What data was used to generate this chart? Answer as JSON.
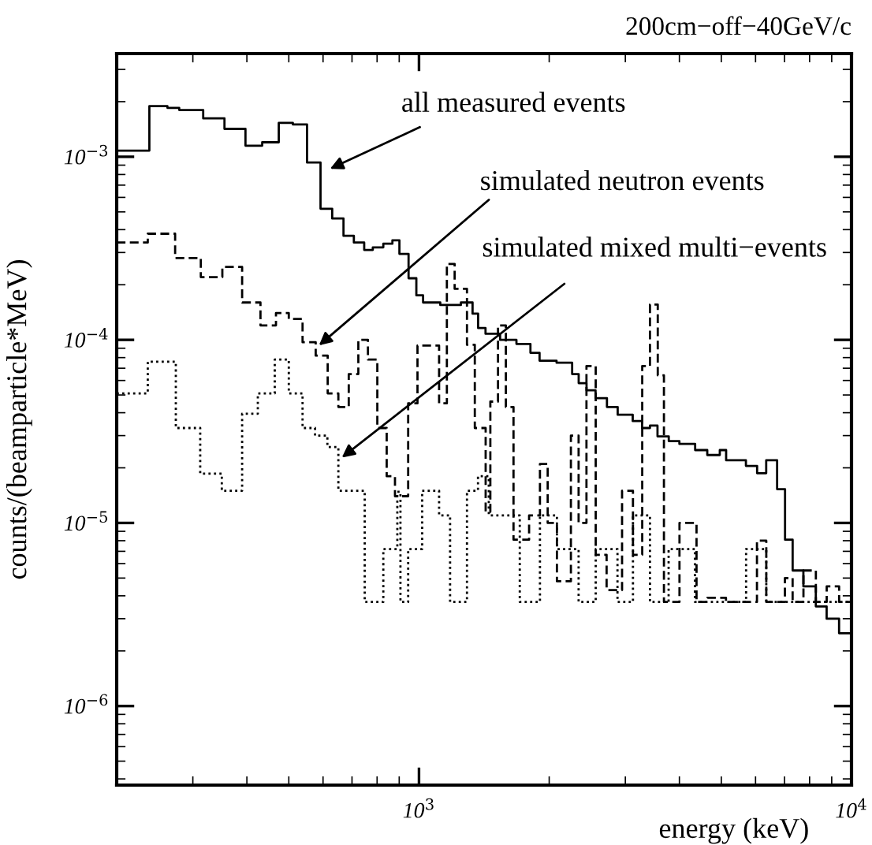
{
  "chart_data": {
    "type": "step",
    "title": "200cm−off−40GeV/c",
    "xlabel": "energy (keV)",
    "ylabel": "counts/(beamparticle*MeV)",
    "log": "xy",
    "xlim": [
      200,
      10000
    ],
    "ylim": [
      3.7e-07,
      0.00366
    ],
    "xticks": [
      {
        "value": 1000,
        "label": "10$^{3}$"
      },
      {
        "value": 10000,
        "label": "10$^{4}$"
      }
    ],
    "yticks": [
      {
        "value": 1e-06,
        "label": "10$^{−6}$"
      },
      {
        "value": 1e-05,
        "label": "10$^{−5}$"
      },
      {
        "value": 0.0001,
        "label": "10$^{−4}$"
      },
      {
        "value": 0.001,
        "label": "10$^{−3}$"
      }
    ],
    "grid": false,
    "legend": false,
    "annotations": [
      {
        "text": "all measured events",
        "x": 610,
        "y": 0.00084
      },
      {
        "text": "simulated neutron events",
        "x": 577,
        "y": 9e-05
      },
      {
        "text": "simulated mixed multi−events",
        "x": 651,
        "y": 2.2e-05
      }
    ],
    "series": [
      {
        "color": "#000000",
        "line_style": "solid",
        "x": [
          200,
          238,
          262,
          279,
          317,
          355,
          397,
          434,
          474,
          511,
          551,
          592,
          630,
          669,
          707,
          747,
          782,
          827,
          868,
          901,
          946,
          986,
          1022,
          1120,
          1250,
          1330,
          1370,
          1425,
          1540,
          1680,
          1810,
          1900,
          2080,
          2260,
          2340,
          2440,
          2560,
          2720,
          2880,
          3120,
          3280,
          3420,
          3560,
          3780,
          4000,
          4350,
          4640,
          4960,
          5130,
          5700,
          6050,
          6350,
          6730,
          7020,
          7310,
          7740,
          8270,
          8760,
          9360,
          10000
        ],
        "values": [
          0.00108,
          0.00189,
          0.00185,
          0.0018,
          0.00162,
          0.00142,
          0.00115,
          0.0012,
          0.00153,
          0.0015,
          0.00093,
          0.00052,
          0.00046,
          0.00037,
          0.00034,
          0.00031,
          0.00032,
          0.000335,
          0.00035,
          0.000295,
          0.000217,
          0.000175,
          0.00016,
          0.000155,
          0.00016,
          0.000139,
          0.000116,
          0.000108,
          0.0001,
          9.5e-05,
          8.5e-05,
          7.7e-05,
          7.5e-05,
          6.5e-05,
          5.8e-05,
          5.3e-05,
          4.8e-05,
          4.3e-05,
          3.9e-05,
          3.6e-05,
          3.3e-05,
          3.4e-05,
          2.97e-05,
          2.8e-05,
          2.7e-05,
          2.5e-05,
          2.35e-05,
          2.5e-05,
          2.2e-05,
          2.05e-05,
          1.87e-05,
          2.2e-05,
          1.53e-05,
          8.1e-06,
          5.5e-06,
          4.5e-06,
          3.5e-06,
          3e-06,
          2.5e-06,
          2.5e-06
        ]
      },
      {
        "color": "#000000",
        "line_style": "dashed",
        "x": [
          200,
          236,
          273,
          313,
          351,
          390,
          430,
          467,
          500,
          538,
          577,
          615,
          651,
          688,
          724,
          762,
          801,
          842,
          880,
          944,
          992,
          1113,
          1160,
          1209,
          1291,
          1346,
          1426,
          1462,
          1523,
          1588,
          1654,
          1797,
          1904,
          1984,
          2084,
          2245,
          2339,
          2439,
          2562,
          2715,
          2948,
          3124,
          3282,
          3420,
          3565,
          3684,
          4002,
          4382,
          4643,
          5126,
          6045,
          6353,
          7015,
          7309,
          7743,
          8272,
          8763,
          9362,
          10000
        ],
        "values": [
          0.00034,
          0.00038,
          0.00028,
          0.00022,
          0.00025,
          0.00016,
          0.00012,
          0.00014,
          0.00013,
          9.7e-05,
          8.2e-05,
          5.1e-05,
          4.3e-05,
          6.5e-05,
          0.0001,
          7.8e-05,
          3.3e-05,
          1.8e-05,
          1.4e-05,
          4.5e-05,
          9.3e-05,
          4.5e-05,
          0.00026,
          0.00019,
          9.4e-05,
          3.3e-05,
          1.15e-05,
          4.6e-05,
          0.00012,
          4.3e-05,
          8.1e-06,
          1.1e-05,
          2.1e-05,
          1e-05,
          4.8e-06,
          3e-05,
          1e-05,
          7.2e-05,
          6.7e-06,
          4.3e-06,
          1.5e-05,
          6.7e-06,
          7.2e-05,
          0.000156,
          6.4e-05,
          3.7e-06,
          1e-05,
          3.7e-06,
          3.9e-06,
          3.7e-06,
          8e-06,
          3.7e-06,
          5e-06,
          3.7e-06,
          5.5e-06,
          3.7e-06,
          4.5e-06,
          3.7e-06,
          3.7e-06
        ]
      },
      {
        "color": "#000000",
        "line_style": "dotted",
        "x": [
          200,
          236,
          274,
          312,
          350,
          390,
          424,
          464,
          500,
          538,
          575,
          614,
          651,
          725,
          749,
          827,
          891,
          906,
          944,
          1017,
          1113,
          1180,
          1291,
          1369,
          1450,
          1710,
          1904,
          2084,
          2339,
          2562,
          2877,
          3124,
          3420,
          3777,
          4346,
          4959,
          5705,
          6353,
          7015,
          7743,
          8763,
          10000
        ],
        "values": [
          5.1e-05,
          7.6e-05,
          3.3e-05,
          1.86e-05,
          1.5e-05,
          3.95e-05,
          5.1e-05,
          7.8e-05,
          5.1e-05,
          3.3e-05,
          3e-05,
          2.6e-05,
          1.5e-05,
          1.5e-05,
          3.7e-06,
          7.2e-06,
          1.48e-05,
          3.7e-06,
          7.2e-06,
          1.5e-05,
          1.1e-05,
          3.7e-06,
          1.5e-05,
          1.8e-05,
          1.1e-05,
          3.7e-06,
          1.1e-05,
          7.2e-06,
          3.7e-06,
          7.2e-06,
          3.7e-06,
          1.1e-05,
          3.7e-06,
          7.2e-06,
          3.7e-06,
          3.7e-06,
          7.2e-06,
          3.7e-06,
          3.7e-06,
          3.7e-06,
          3.7e-06,
          3.7e-06
        ]
      }
    ]
  }
}
